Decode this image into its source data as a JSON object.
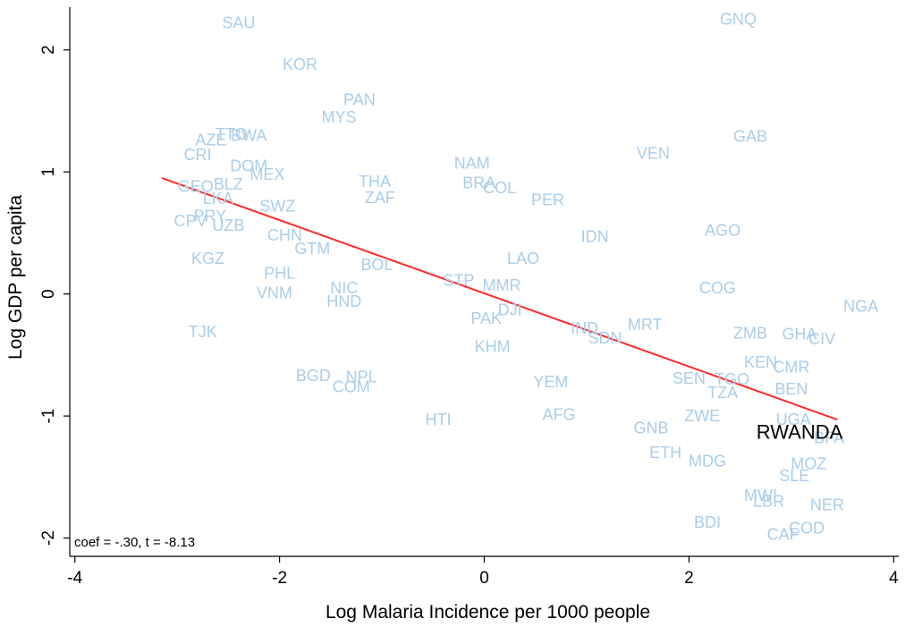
{
  "chart_data": {
    "type": "scatter",
    "xlabel": "Log Malaria Incidence per 1000 people",
    "ylabel": "Log GDP per capita",
    "xlim": [
      -4.05,
      4.05
    ],
    "ylim": [
      -2.15,
      2.35
    ],
    "xticks": [
      -4,
      -2,
      0,
      2,
      4
    ],
    "yticks": [
      -2,
      -1,
      0,
      1,
      2
    ],
    "xtick_labels": [
      "-4",
      "-2",
      "0",
      "2",
      "4"
    ],
    "ytick_labels": [
      "-2",
      "-1",
      "0",
      "1",
      "2"
    ],
    "grid": false,
    "annotation": "coef = -.30,  t = -8.13",
    "point_color": "#a9cdea",
    "highlight_color": "#000000",
    "fit_color": "#ff2a2a",
    "fit_line": {
      "x": [
        -3.15,
        3.45
      ],
      "y": [
        0.95,
        -1.03
      ]
    },
    "points": [
      {
        "label": "SAU",
        "x": -2.4,
        "y": 2.22
      },
      {
        "label": "GNQ",
        "x": 2.48,
        "y": 2.25
      },
      {
        "label": "KOR",
        "x": -1.8,
        "y": 1.88
      },
      {
        "label": "PAN",
        "x": -1.22,
        "y": 1.59
      },
      {
        "label": "MYS",
        "x": -1.42,
        "y": 1.45
      },
      {
        "label": "AZE",
        "x": -2.67,
        "y": 1.26
      },
      {
        "label": "TTO",
        "x": -2.47,
        "y": 1.31
      },
      {
        "label": "BWA",
        "x": -2.3,
        "y": 1.3
      },
      {
        "label": "GAB",
        "x": 2.6,
        "y": 1.29
      },
      {
        "label": "CRI",
        "x": -2.8,
        "y": 1.14
      },
      {
        "label": "VEN",
        "x": 1.65,
        "y": 1.15
      },
      {
        "label": "DOM",
        "x": -2.3,
        "y": 1.05
      },
      {
        "label": "MEX",
        "x": -2.12,
        "y": 0.98
      },
      {
        "label": "NAM",
        "x": -0.12,
        "y": 1.07
      },
      {
        "label": "GEO",
        "x": -2.82,
        "y": 0.88
      },
      {
        "label": "BLZ",
        "x": -2.5,
        "y": 0.9
      },
      {
        "label": "THA",
        "x": -1.07,
        "y": 0.92
      },
      {
        "label": "BRA",
        "x": -0.05,
        "y": 0.91
      },
      {
        "label": "COL",
        "x": 0.15,
        "y": 0.87
      },
      {
        "label": "PER",
        "x": 0.62,
        "y": 0.77
      },
      {
        "label": "LKA",
        "x": -2.6,
        "y": 0.78
      },
      {
        "label": "ZAF",
        "x": -1.02,
        "y": 0.79
      },
      {
        "label": "SWZ",
        "x": -2.02,
        "y": 0.72
      },
      {
        "label": "CPV",
        "x": -2.87,
        "y": 0.6
      },
      {
        "label": "PRY",
        "x": -2.68,
        "y": 0.64
      },
      {
        "label": "UZB",
        "x": -2.5,
        "y": 0.56
      },
      {
        "label": "CHN",
        "x": -1.95,
        "y": 0.48
      },
      {
        "label": "IDN",
        "x": 1.08,
        "y": 0.47
      },
      {
        "label": "AGO",
        "x": 2.33,
        "y": 0.52
      },
      {
        "label": "GTM",
        "x": -1.68,
        "y": 0.37
      },
      {
        "label": "KGZ",
        "x": -2.7,
        "y": 0.29
      },
      {
        "label": "LAO",
        "x": 0.38,
        "y": 0.29
      },
      {
        "label": "BOL",
        "x": -1.05,
        "y": 0.24
      },
      {
        "label": "PHL",
        "x": -2.0,
        "y": 0.17
      },
      {
        "label": "STP",
        "x": -0.25,
        "y": 0.11
      },
      {
        "label": "MMR",
        "x": 0.17,
        "y": 0.07
      },
      {
        "label": "NIC",
        "x": -1.37,
        "y": 0.05
      },
      {
        "label": "VNM",
        "x": -2.05,
        "y": 0.01
      },
      {
        "label": "COG",
        "x": 2.28,
        "y": 0.05
      },
      {
        "label": "HND",
        "x": -1.37,
        "y": -0.06
      },
      {
        "label": "NGA",
        "x": 3.68,
        "y": -0.1
      },
      {
        "label": "DJI",
        "x": 0.25,
        "y": -0.13
      },
      {
        "label": "PAK",
        "x": 0.02,
        "y": -0.2
      },
      {
        "label": "MRT",
        "x": 1.57,
        "y": -0.25
      },
      {
        "label": "IND",
        "x": 0.98,
        "y": -0.28
      },
      {
        "label": "SDN",
        "x": 1.18,
        "y": -0.36
      },
      {
        "label": "TJK",
        "x": -2.75,
        "y": -0.31
      },
      {
        "label": "ZMB",
        "x": 2.6,
        "y": -0.32
      },
      {
        "label": "GHA",
        "x": 3.08,
        "y": -0.33
      },
      {
        "label": "CIV",
        "x": 3.3,
        "y": -0.37
      },
      {
        "label": "KHM",
        "x": 0.08,
        "y": -0.43
      },
      {
        "label": "KEN",
        "x": 2.7,
        "y": -0.56
      },
      {
        "label": "CMR",
        "x": 3.0,
        "y": -0.6
      },
      {
        "label": "BGD",
        "x": -1.67,
        "y": -0.67
      },
      {
        "label": "NPL",
        "x": -1.2,
        "y": -0.68
      },
      {
        "label": "SEN",
        "x": 2.0,
        "y": -0.69
      },
      {
        "label": "TGO",
        "x": 2.42,
        "y": -0.7
      },
      {
        "label": "COM",
        "x": -1.3,
        "y": -0.76
      },
      {
        "label": "YEM",
        "x": 0.65,
        "y": -0.72
      },
      {
        "label": "BEN",
        "x": 3.0,
        "y": -0.78
      },
      {
        "label": "TZA",
        "x": 2.33,
        "y": -0.81
      },
      {
        "label": "ZWE",
        "x": 2.13,
        "y": -1.0
      },
      {
        "label": "AFG",
        "x": 0.73,
        "y": -0.99
      },
      {
        "label": "HTI",
        "x": -0.45,
        "y": -1.03
      },
      {
        "label": "UGA",
        "x": 3.02,
        "y": -1.03
      },
      {
        "label": "GNB",
        "x": 1.63,
        "y": -1.1
      },
      {
        "label": "BFA",
        "x": 3.37,
        "y": -1.18
      },
      {
        "label": "ETH",
        "x": 1.77,
        "y": -1.3
      },
      {
        "label": "MDG",
        "x": 2.18,
        "y": -1.37
      },
      {
        "label": "MOZ",
        "x": 3.17,
        "y": -1.39
      },
      {
        "label": "SLE",
        "x": 3.03,
        "y": -1.49
      },
      {
        "label": "MWI",
        "x": 2.7,
        "y": -1.65
      },
      {
        "label": "LBR",
        "x": 2.78,
        "y": -1.7
      },
      {
        "label": "NER",
        "x": 3.35,
        "y": -1.73
      },
      {
        "label": "BDI",
        "x": 2.18,
        "y": -1.87
      },
      {
        "label": "COD",
        "x": 3.15,
        "y": -1.92
      },
      {
        "label": "CAF",
        "x": 2.92,
        "y": -1.97
      },
      {
        "label": "RWANDA",
        "x": 3.08,
        "y": -1.13,
        "highlight": true
      }
    ]
  }
}
